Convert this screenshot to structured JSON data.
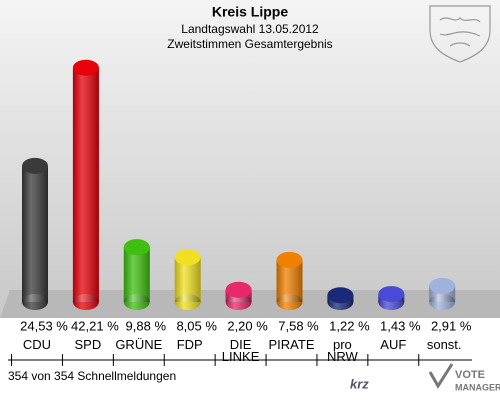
{
  "chart_data": {
    "type": "bar",
    "title": "Kreis Lippe",
    "subtitle": "Landtagswahl 13.05.2012",
    "subtitle2": "Zweitstimmen Gesamtergebnis",
    "categories": [
      "CDU",
      "SPD",
      "GRÜNE",
      "FDP",
      "DIE LINKE",
      "PIRATE",
      "pro NRW",
      "AUF",
      "sonst."
    ],
    "values": [
      24.53,
      42.21,
      9.88,
      8.05,
      2.2,
      7.58,
      1.22,
      1.43,
      2.91
    ],
    "value_labels": [
      "24,53 %",
      "42,21 %",
      "9,88 %",
      "8,05 %",
      "2,20 %",
      "7,58 %",
      "1,22 %",
      "1,43 %",
      "2,91 %"
    ],
    "colors": [
      "#3a3a3a",
      "#e8000a",
      "#3fbf10",
      "#f0e020",
      "#e8286a",
      "#f08000",
      "#1a2a78",
      "#4a4ad8",
      "#a0b2dc"
    ],
    "note": "354 von 354 Schnellmeldungen",
    "logos": [
      "krz",
      "VOTE",
      "MANAGER"
    ]
  }
}
